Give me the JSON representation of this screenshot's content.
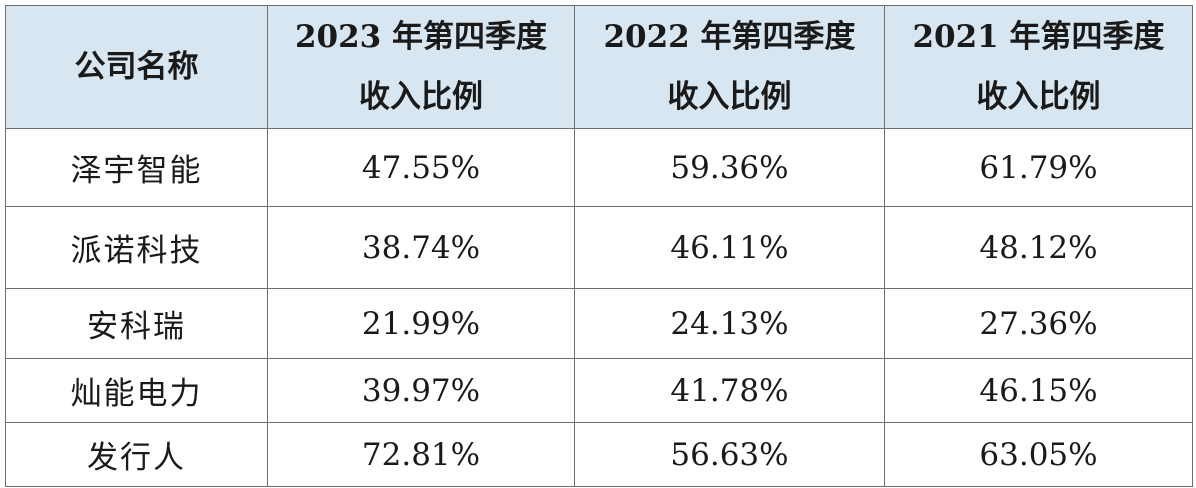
{
  "table": {
    "headers": {
      "company": "公司名称",
      "q4_2023": [
        "2023 年第四季度",
        "收入比例"
      ],
      "q4_2022": [
        "2022 年第四季度",
        "收入比例"
      ],
      "q4_2021": [
        "2021 年第四季度",
        "收入比例"
      ]
    },
    "rows": [
      {
        "company": "泽宇智能",
        "q4_2023": "47.55%",
        "q4_2022": "59.36%",
        "q4_2021": "61.79%"
      },
      {
        "company": "派诺科技",
        "q4_2023": "38.74%",
        "q4_2022": "46.11%",
        "q4_2021": "48.12%"
      },
      {
        "company": "安科瑞",
        "q4_2023": "21.99%",
        "q4_2022": "24.13%",
        "q4_2021": "27.36%"
      },
      {
        "company": "灿能电力",
        "q4_2023": "39.97%",
        "q4_2022": "41.78%",
        "q4_2021": "46.15%"
      },
      {
        "company": "发行人",
        "q4_2023": "72.81%",
        "q4_2022": "56.63%",
        "q4_2021": "63.05%"
      }
    ],
    "header_bg": "#d7e6f1",
    "border_color": "#6f6f6f"
  }
}
